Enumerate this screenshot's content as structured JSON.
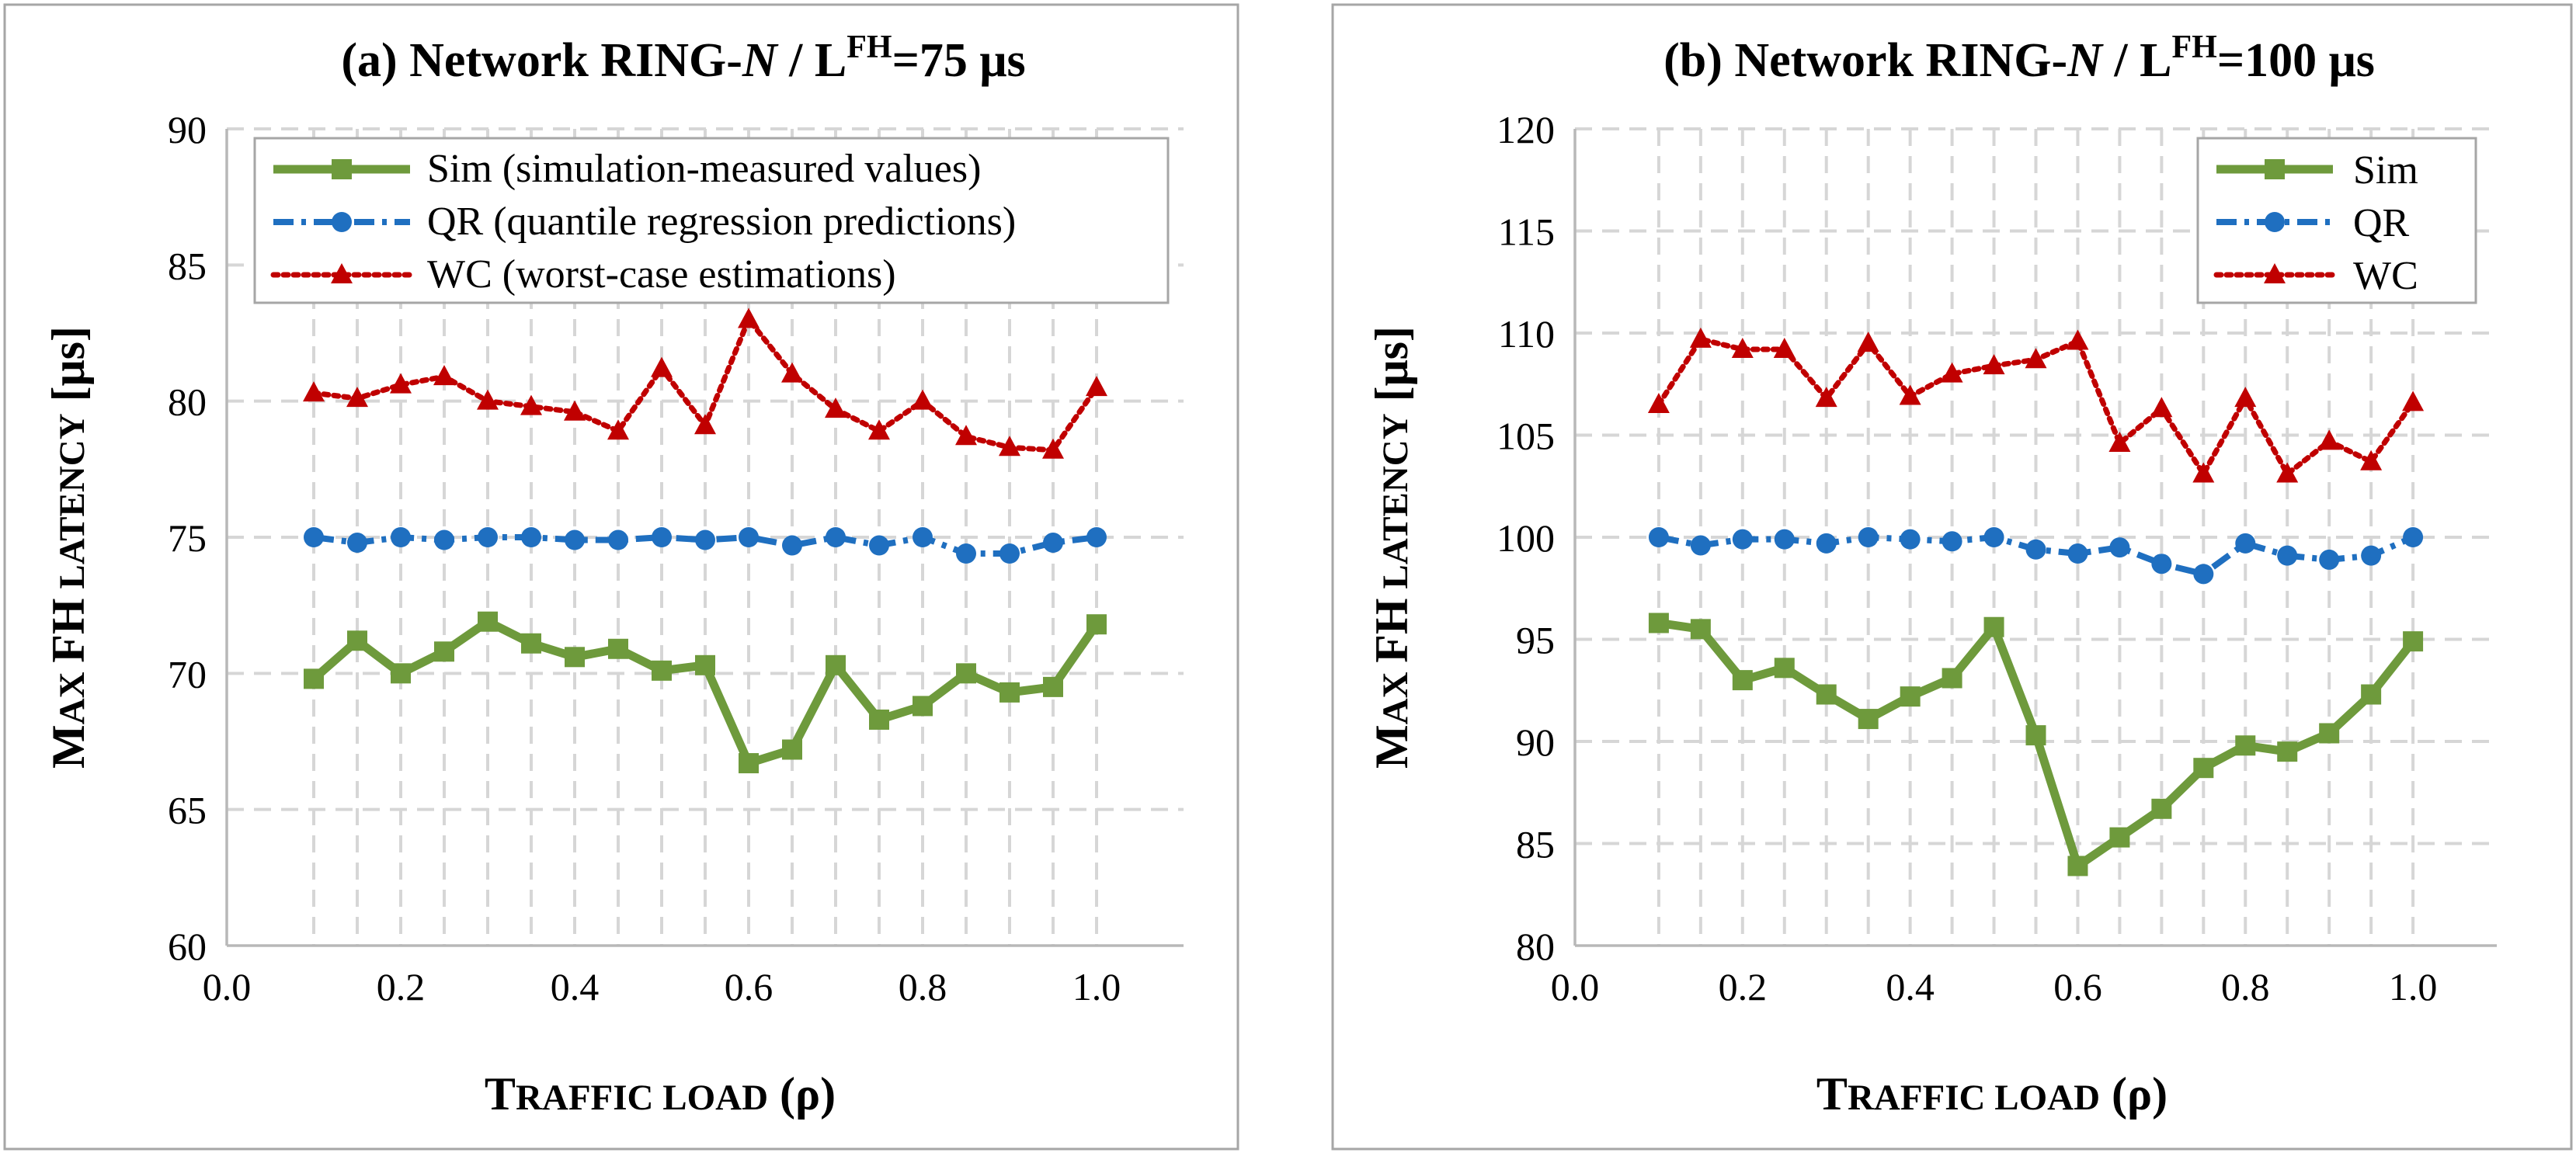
{
  "chart_data": [
    {
      "type": "line",
      "title": {
        "prefix": "(a) Network RING-",
        "italic": "N",
        "mid": " / L",
        "sup": "FH",
        "suffix": "=75 μs"
      },
      "xlabel": {
        "cap1": "T",
        "sc1": "RAFFIC LOAD",
        "rest": " (ρ)"
      },
      "ylabel": {
        "cap1": "M",
        "sc1": "AX ",
        "mid": "FH",
        "sc2": " LATENCY",
        "rest": " [μs]"
      },
      "xlim": [
        0.0,
        1.1
      ],
      "ylim": [
        60,
        90
      ],
      "xticks": [
        "0.0",
        "0.2",
        "0.4",
        "0.6",
        "0.8",
        "1.0"
      ],
      "yticks": [
        "60",
        "65",
        "70",
        "75",
        "80",
        "85",
        "90"
      ],
      "grid": true,
      "legend_position": "top",
      "x": [
        0.1,
        0.15,
        0.2,
        0.25,
        0.3,
        0.35,
        0.4,
        0.45,
        0.5,
        0.55,
        0.6,
        0.65,
        0.7,
        0.75,
        0.8,
        0.85,
        0.9,
        0.95,
        1.0
      ],
      "series": [
        {
          "name": "Sim (simulation-measured values)",
          "color": "#6e9a3c",
          "style": "solid",
          "marker": "square",
          "values": [
            69.8,
            71.2,
            70.0,
            70.8,
            71.9,
            71.1,
            70.6,
            70.9,
            70.1,
            70.3,
            66.7,
            67.2,
            70.3,
            68.3,
            68.8,
            70.0,
            69.3,
            69.5,
            71.8
          ]
        },
        {
          "name": "QR (quantile regression predictions)",
          "color": "#1f6fc0",
          "style": "dashdot",
          "marker": "circle",
          "values": [
            75.0,
            74.8,
            75.0,
            74.9,
            75.0,
            75.0,
            74.9,
            74.9,
            75.0,
            74.9,
            75.0,
            74.7,
            75.0,
            74.7,
            75.0,
            74.4,
            74.4,
            74.8,
            75.0
          ]
        },
        {
          "name": "WC (worst-case estimations)",
          "color": "#c00000",
          "style": "dotted",
          "marker": "triangle",
          "values": [
            80.3,
            80.1,
            80.6,
            80.9,
            80.0,
            79.8,
            79.6,
            78.9,
            81.2,
            79.1,
            83.0,
            81.0,
            79.7,
            78.9,
            80.0,
            78.7,
            78.3,
            78.2,
            80.5
          ]
        }
      ]
    },
    {
      "type": "line",
      "title": {
        "prefix": "(b) Network RING-",
        "italic": "N",
        "mid": " / L",
        "sup": "FH",
        "suffix": "=100 μs"
      },
      "xlabel": {
        "cap1": "T",
        "sc1": "RAFFIC LOAD",
        "rest": " (ρ)"
      },
      "ylabel": {
        "cap1": "M",
        "sc1": "AX ",
        "mid": "FH",
        "sc2": " LATENCY",
        "rest": " [μs]"
      },
      "xlim": [
        0.0,
        1.1
      ],
      "ylim": [
        80,
        120
      ],
      "xticks": [
        "0.0",
        "0.2",
        "0.4",
        "0.6",
        "0.8",
        "1.0"
      ],
      "yticks": [
        "80",
        "85",
        "90",
        "95",
        "100",
        "105",
        "110",
        "115",
        "120"
      ],
      "grid": true,
      "legend_position": "top-right",
      "x": [
        0.1,
        0.15,
        0.2,
        0.25,
        0.3,
        0.35,
        0.4,
        0.45,
        0.5,
        0.55,
        0.6,
        0.65,
        0.7,
        0.75,
        0.8,
        0.85,
        0.9,
        0.95,
        1.0
      ],
      "series": [
        {
          "name": "Sim",
          "color": "#6e9a3c",
          "style": "solid",
          "marker": "square",
          "values": [
            95.8,
            95.5,
            93.0,
            93.6,
            92.3,
            91.1,
            92.2,
            93.1,
            95.6,
            90.3,
            83.9,
            85.3,
            86.7,
            88.7,
            89.8,
            89.5,
            90.4,
            92.3,
            94.9
          ]
        },
        {
          "name": "QR",
          "color": "#1f6fc0",
          "style": "dashdot",
          "marker": "circle",
          "values": [
            100.0,
            99.6,
            99.9,
            99.9,
            99.7,
            100.0,
            99.9,
            99.8,
            100.0,
            99.4,
            99.2,
            99.5,
            98.7,
            98.2,
            99.7,
            99.1,
            98.9,
            99.1,
            100.0
          ]
        },
        {
          "name": "WC",
          "color": "#c00000",
          "style": "dotted",
          "marker": "triangle",
          "values": [
            106.5,
            109.7,
            109.2,
            109.2,
            106.8,
            109.5,
            106.9,
            108.0,
            108.4,
            108.7,
            109.6,
            104.6,
            106.3,
            103.1,
            106.8,
            103.1,
            104.7,
            103.7,
            106.6
          ]
        }
      ]
    }
  ]
}
